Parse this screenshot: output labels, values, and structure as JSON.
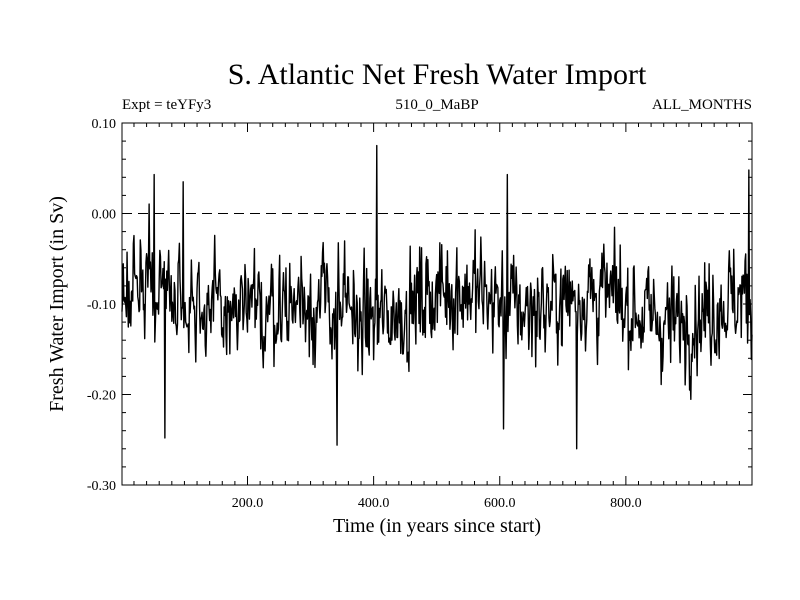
{
  "chart_data": {
    "type": "line",
    "title": "S. Atlantic Net Fresh Water Import",
    "expt_label": "Expt = teYFy3",
    "period_label": "510_0_MaBP",
    "months_label": "ALL_MONTHS",
    "xlabel": "Time (in years since start)",
    "ylabel": "Fresh Water Import (in Sv)",
    "xlim": [
      1,
      1000
    ],
    "ylim": [
      -0.3,
      0.1
    ],
    "x_ticks": [
      200,
      400,
      600,
      800
    ],
    "x_tick_labels": [
      "200.0",
      "400.0",
      "600.0",
      "800.0"
    ],
    "y_ticks": [
      0.1,
      0.0,
      -0.1,
      -0.2,
      -0.3
    ],
    "y_tick_labels": [
      "0.10",
      "0.00",
      "-0.10",
      "-0.20",
      "-0.30"
    ],
    "reference_line": {
      "y": 0.0,
      "style": "dashed"
    },
    "grid": false,
    "series": [
      {
        "name": "Fresh Water Import",
        "color": "#000000",
        "sampling": "annual, 1000 values; approximated from figure",
        "mean": -0.1,
        "std": 0.045,
        "min": {
          "x": 722,
          "y": -0.26
        },
        "max": {
          "x": 405,
          "y": 0.075
        },
        "notable_peaks": [
          {
            "x": 52,
            "y": 0.043
          },
          {
            "x": 98,
            "y": 0.035
          },
          {
            "x": 405,
            "y": 0.075
          },
          {
            "x": 612,
            "y": 0.043
          },
          {
            "x": 995,
            "y": 0.048
          }
        ],
        "notable_troughs": [
          {
            "x": 69,
            "y": -0.248
          },
          {
            "x": 342,
            "y": -0.256
          },
          {
            "x": 722,
            "y": -0.26
          },
          {
            "x": 606,
            "y": -0.238
          }
        ],
        "seed": 5107
      }
    ]
  }
}
